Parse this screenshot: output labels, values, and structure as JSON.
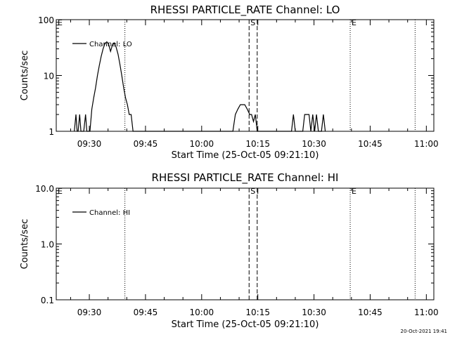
{
  "chart_data": [
    {
      "type": "line",
      "title": "RHESSI PARTICLE_RATE Channel: LO",
      "xlabel": "Start Time (25-Oct-05 09:21:10)",
      "ylabel": "Counts/sec",
      "y_scale": "log",
      "ylim": [
        1,
        100
      ],
      "ytick_labels": [
        "1",
        "10",
        "100"
      ],
      "xlim": [
        "09:21:10",
        "11:02:00"
      ],
      "xtick_labels": [
        "09:30",
        "09:45",
        "10:00",
        "10:15",
        "10:30",
        "10:45",
        "11:00"
      ],
      "legend": "top-left",
      "series": [
        {
          "name": "Channel: LO",
          "points": [
            [
              "09:26:00",
              1
            ],
            [
              "09:26:25",
              2
            ],
            [
              "09:26:45",
              1
            ],
            [
              "09:27:00",
              1
            ],
            [
              "09:27:25",
              2
            ],
            [
              "09:27:45",
              1
            ],
            [
              "09:28:30",
              1
            ],
            [
              "09:29:00",
              2
            ],
            [
              "09:29:20",
              1
            ],
            [
              "09:30:10",
              1
            ],
            [
              "09:30:40",
              2.5
            ],
            [
              "09:31:10",
              4
            ],
            [
              "09:31:40",
              6
            ],
            [
              "09:32:10",
              10
            ],
            [
              "09:32:40",
              15
            ],
            [
              "09:33:10",
              22
            ],
            [
              "09:33:40",
              30
            ],
            [
              "09:34:10",
              37
            ],
            [
              "09:34:40",
              40
            ],
            [
              "09:35:10",
              36
            ],
            [
              "09:35:40",
              27
            ],
            [
              "09:36:10",
              35
            ],
            [
              "09:36:40",
              38
            ],
            [
              "09:37:10",
              32
            ],
            [
              "09:37:40",
              24
            ],
            [
              "09:38:10",
              16
            ],
            [
              "09:38:40",
              10
            ],
            [
              "09:39:10",
              6
            ],
            [
              "09:39:40",
              4
            ],
            [
              "09:40:10",
              3
            ],
            [
              "09:40:40",
              2
            ],
            [
              "09:41:10",
              2
            ],
            [
              "09:41:40",
              1
            ],
            [
              "09:42:20",
              1
            ],
            [
              "10:08:20",
              1
            ],
            [
              "10:09:00",
              2
            ],
            [
              "10:09:40",
              2.5
            ],
            [
              "10:10:20",
              3
            ],
            [
              "10:11:30",
              3
            ],
            [
              "10:12:10",
              2.5
            ],
            [
              "10:12:50",
              2
            ],
            [
              "10:13:20",
              2
            ],
            [
              "10:13:50",
              1.5
            ],
            [
              "10:14:20",
              2
            ],
            [
              "10:14:50",
              1
            ],
            [
              "10:24:00",
              1
            ],
            [
              "10:24:30",
              2
            ],
            [
              "10:25:00",
              1
            ],
            [
              "10:27:00",
              1
            ],
            [
              "10:27:30",
              2
            ],
            [
              "10:28:40",
              2
            ],
            [
              "10:29:10",
              1
            ],
            [
              "10:29:40",
              2
            ],
            [
              "10:30:10",
              1
            ],
            [
              "10:30:40",
              2
            ],
            [
              "10:31:10",
              1
            ],
            [
              "10:32:00",
              1
            ],
            [
              "10:32:30",
              2
            ],
            [
              "10:33:00",
              1
            ]
          ]
        }
      ],
      "markers": [
        {
          "label": "E",
          "line_time": "09:39:30",
          "label_time": "09:21:10",
          "style": "dotted"
        },
        {
          "label": "S",
          "line_time": "10:12:40",
          "label_time": "10:12:40",
          "style": "dashed"
        },
        {
          "label": "",
          "line_time": "10:14:50",
          "label_time": "10:14:50",
          "style": "dashed"
        },
        {
          "label": "E",
          "line_time": "10:39:40",
          "label_time": "10:39:40",
          "style": "dotted"
        },
        {
          "label": "",
          "line_time": "10:57:00",
          "label_time": "10:57:00",
          "style": "dotted"
        }
      ]
    },
    {
      "type": "line",
      "title": "RHESSI PARTICLE_RATE Channel: HI",
      "xlabel": "Start Time (25-Oct-05 09:21:10)",
      "ylabel": "Counts/sec",
      "y_scale": "log",
      "ylim": [
        0.1,
        10
      ],
      "ytick_labels": [
        "0.1",
        "1.0",
        "10.0"
      ],
      "xlim": [
        "09:21:10",
        "11:02:00"
      ],
      "xtick_labels": [
        "09:30",
        "09:45",
        "10:00",
        "10:15",
        "10:30",
        "10:45",
        "11:00"
      ],
      "legend": "top-left",
      "series": [
        {
          "name": "Channel: HI",
          "points": []
        }
      ],
      "markers": [
        {
          "label": "E",
          "line_time": "09:39:30",
          "label_time": "09:21:10",
          "style": "dotted"
        },
        {
          "label": "S",
          "line_time": "10:12:40",
          "label_time": "10:12:40",
          "style": "dashed"
        },
        {
          "label": "",
          "line_time": "10:14:50",
          "label_time": "10:14:50",
          "style": "dashed"
        },
        {
          "label": "E",
          "line_time": "10:39:40",
          "label_time": "10:39:40",
          "style": "dotted"
        },
        {
          "label": "",
          "line_time": "10:57:00",
          "label_time": "10:57:00",
          "style": "dotted"
        }
      ]
    }
  ],
  "timestamp": "20-Oct-2021 19:41"
}
